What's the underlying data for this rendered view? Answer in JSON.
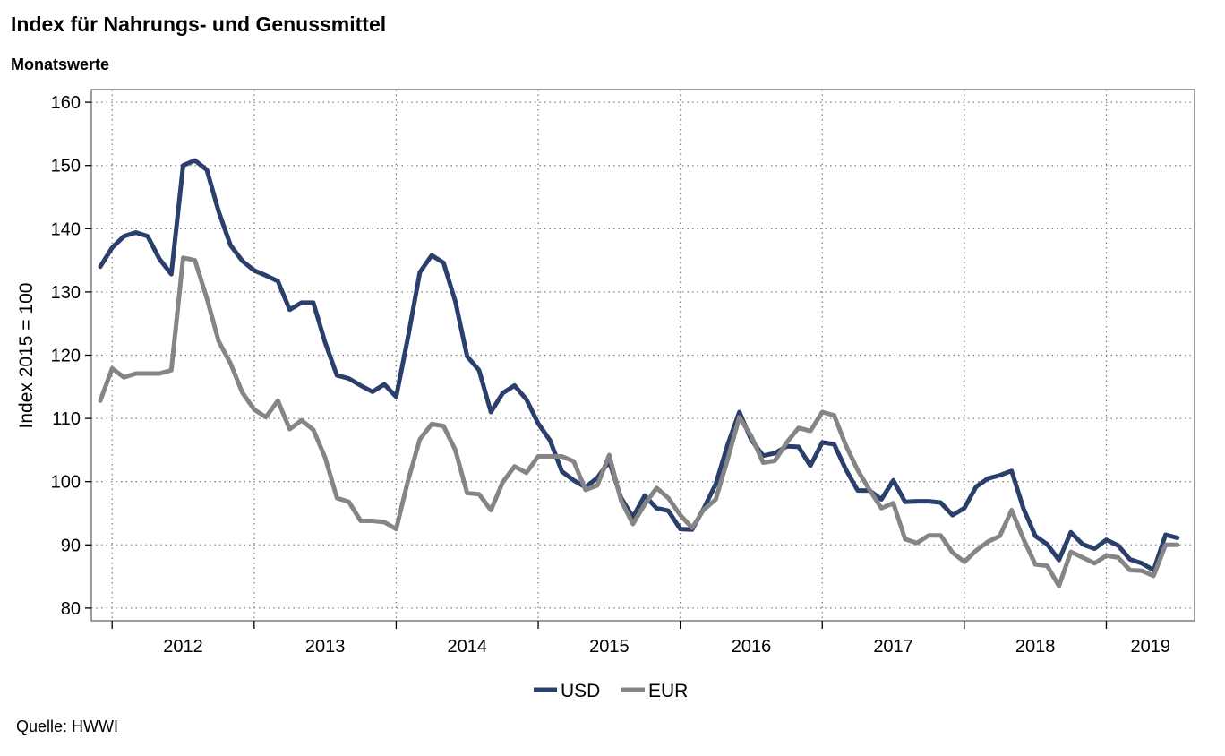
{
  "header": {
    "title": "Index für Nahrungs- und Genussmittel",
    "subtitle": "Monatswerte"
  },
  "footer": {
    "source": "Quelle: HWWI"
  },
  "chart_data": {
    "type": "line",
    "title": "Index für Nahrungs- und Genussmittel",
    "subtitle": "Monatswerte",
    "xlabel": "",
    "ylabel": "Index 2015 = 100",
    "ylim": [
      78,
      162
    ],
    "yticks": [
      80,
      90,
      100,
      110,
      120,
      130,
      140,
      150,
      160
    ],
    "x_start": "2011-12",
    "x_end": "2019-08",
    "year_labels": [
      "2012",
      "2013",
      "2014",
      "2015",
      "2016",
      "2017",
      "2018",
      "2019"
    ],
    "grid": true,
    "legend_position": "bottom-center",
    "series": [
      {
        "name": "USD",
        "color": "#2b3f6c",
        "values": [
          134,
          137,
          138.8,
          139.4,
          138.8,
          135.2,
          132.8,
          150,
          150.8,
          149.3,
          142.7,
          137.4,
          134.9,
          133.4,
          132.6,
          131.7,
          127.2,
          128.3,
          128.3,
          122,
          116.8,
          116.3,
          115.2,
          114.2,
          115.4,
          113.4,
          122.9,
          133.1,
          135.8,
          134.6,
          128.5,
          119.8,
          117.6,
          111,
          114,
          115.2,
          113,
          109.2,
          106.5,
          101.6,
          100.2,
          99.1,
          100.6,
          103.2,
          97.4,
          94.4,
          97.8,
          95.8,
          95.4,
          92.5,
          92.4,
          95.8,
          99.6,
          105.8,
          111,
          106.6,
          104.1,
          104.5,
          105.6,
          105.5,
          102.5,
          106.2,
          105.9,
          101.9,
          98.6,
          98.6,
          97.2,
          100.2,
          96.8,
          96.9,
          96.9,
          96.7,
          94.7,
          95.8,
          99.2,
          100.5,
          101,
          101.7,
          95.7,
          91.4,
          90.1,
          87.6,
          92,
          90.1,
          89.4,
          90.8,
          89.9,
          87.7,
          87.1,
          86,
          91.6,
          91.1
        ],
        "rendered_points": 92
      },
      {
        "name": "EUR",
        "color": "#858585",
        "values": [
          112.8,
          117.9,
          116.5,
          117.1,
          117.1,
          117.1,
          117.6,
          135.4,
          135,
          129,
          122.2,
          118.7,
          114.1,
          111.4,
          110.2,
          112.8,
          108.3,
          109.7,
          108.2,
          103.8,
          97.4,
          96.8,
          93.8,
          93.8,
          93.6,
          92.5,
          100.2,
          106.7,
          109.1,
          108.8,
          105,
          98.2,
          98,
          95.5,
          99.9,
          102.4,
          101.4,
          104,
          104,
          104,
          103.2,
          98.7,
          99.4,
          104.2,
          97,
          93.3,
          96.4,
          99,
          97.4,
          94.7,
          92.7,
          95.6,
          97.2,
          103.5,
          110.2,
          107.2,
          103,
          103.3,
          106.2,
          108.5,
          108,
          111,
          110.5,
          105.7,
          101.8,
          98.7,
          95.8,
          96.6,
          90.9,
          90.3,
          91.5,
          91.5,
          88.8,
          87.3,
          89.1,
          90.5,
          91.4,
          95.5,
          90.9,
          86.9,
          86.7,
          83.5,
          88.9,
          88,
          87.1,
          88.3,
          88,
          86,
          85.9,
          85.1,
          90,
          90
        ],
        "rendered_points": 92
      }
    ]
  }
}
